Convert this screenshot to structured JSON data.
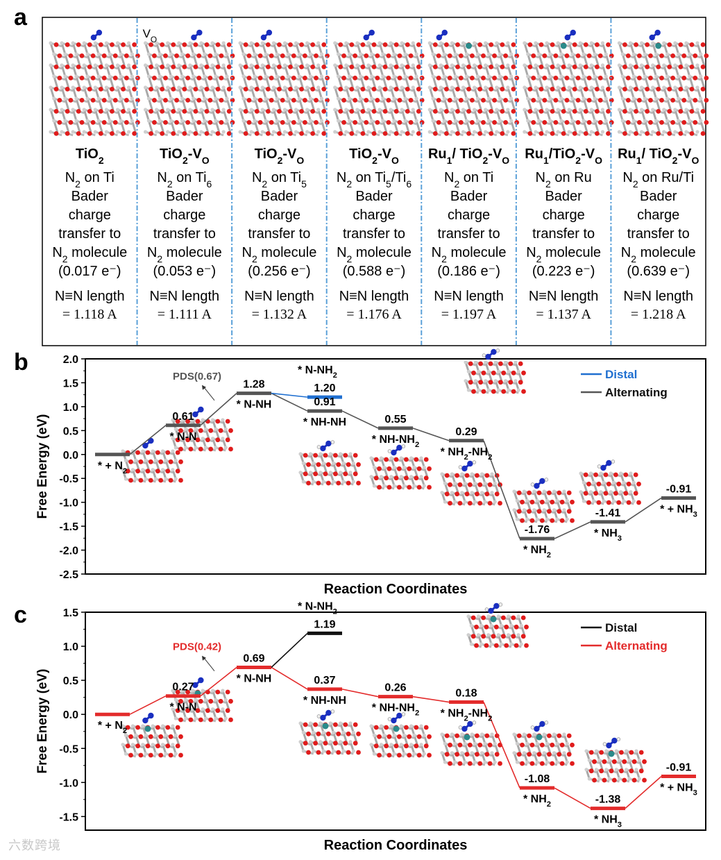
{
  "panel_a": {
    "letter": "a",
    "columns": [
      {
        "title_main": "TiO",
        "title_sub": "2",
        "title_rest": "",
        "site_main": "N",
        "site_sub": "2",
        "site_rest": " on Ti",
        "site_sub2": "",
        "site_tail": "",
        "charge": "(0.017 e⁻)",
        "length": "= 1.118 A"
      },
      {
        "title_main": "TiO",
        "title_sub": "2",
        "title_rest": "-V",
        "title_sub2": "O",
        "site_main": "N",
        "site_sub": "2",
        "site_rest": " on Ti",
        "site_sub2": "6",
        "site_tail": "",
        "charge": "(0.053 e⁻)",
        "length": "= 1.111 A",
        "vo_label": "V",
        "vo_sub": "O"
      },
      {
        "title_main": "TiO",
        "title_sub": "2",
        "title_rest": "-V",
        "title_sub2": "O",
        "site_main": "N",
        "site_sub": "2",
        "site_rest": " on Ti",
        "site_sub2": "5",
        "site_tail": "",
        "charge": "(0.256 e⁻)",
        "length": "= 1.132 A"
      },
      {
        "title_main": "TiO",
        "title_sub": "2",
        "title_rest": "-V",
        "title_sub2": "O",
        "site_main": "N",
        "site_sub": "2",
        "site_rest": " on Ti",
        "site_sub2": "5",
        "site_tail": "/Ti6",
        "charge": "(0.588 e⁻)",
        "length": "= 1.176 A"
      },
      {
        "title_main": "Ru",
        "title_sub": "1",
        "title_rest": "/ TiO",
        "title_sub3": "2",
        "title_rest2": "-V",
        "title_sub2": "O",
        "site_main": "N",
        "site_sub": "2",
        "site_rest": " on Ti",
        "site_sub2": "",
        "site_tail": "",
        "charge": "(0.186 e⁻)",
        "length": "= 1.197 A"
      },
      {
        "title_main": "Ru",
        "title_sub": "1",
        "title_rest": "/TiO",
        "title_sub3": "2",
        "title_rest2": "-V",
        "title_sub2": "O",
        "site_main": "N",
        "site_sub": "2",
        "site_rest": " on Ru",
        "site_sub2": "",
        "site_tail": "",
        "charge": "(0.223 e⁻)",
        "length": "= 1.137 A"
      },
      {
        "title_main": "Ru",
        "title_sub": "1",
        "title_rest": "/ TiO",
        "title_sub3": "2",
        "title_rest2": "-V",
        "title_sub2": "O",
        "site_main": "N",
        "site_sub": "2",
        "site_rest": " on Ru/Ti",
        "site_sub2": "",
        "site_tail": "",
        "charge": "(0.639 e⁻)",
        "length": "= 1.218 A"
      }
    ],
    "bader_lines": [
      "Bader",
      "charge",
      "transfer to"
    ],
    "molecule_main": "N",
    "molecule_sub": "2",
    "molecule_rest": " molecule",
    "nn_label": "N≡N length"
  },
  "chart_data": [
    {
      "type": "line",
      "panel": "b",
      "xlabel": "Reaction Coordinates",
      "ylabel": "Free Energy (eV)",
      "ylim": [
        -2.5,
        2.0
      ],
      "yticks": [
        "2.0",
        "1.5",
        "1.0",
        "0.5",
        "0.0",
        "-0.5",
        "-1.0",
        "-1.5",
        "-2.0",
        "-2.5"
      ],
      "pds_label": "PDS(0.67)",
      "legend": [
        {
          "name": "Distal",
          "color": "#1f6fd0"
        },
        {
          "name": "Alternating",
          "color": "#555555"
        }
      ],
      "alternating_color": "#555555",
      "distal_color": "#1f6fd0",
      "states": [
        {
          "value": 0.0,
          "label": "",
          "name_main": "* + N",
          "name_sub": "2",
          "name_tail": ""
        },
        {
          "value": 0.61,
          "label": "0.61",
          "name_main": "* N-N",
          "name_sub": "",
          "name_tail": ""
        },
        {
          "value": 1.28,
          "label": "1.28",
          "name_main": "* N-NH",
          "name_sub": "",
          "name_tail": ""
        },
        {
          "value": 0.91,
          "label": "0.91",
          "name_main": "* NH-NH",
          "name_sub": "",
          "name_tail": ""
        },
        {
          "value": 0.55,
          "label": "0.55",
          "name_main": "* NH-NH",
          "name_sub": "2",
          "name_tail": ""
        },
        {
          "value": 0.29,
          "label": "0.29",
          "name_main": "* NH",
          "name_sub": "2",
          "name_tail": "-NH2"
        },
        {
          "value": -1.76,
          "label": "-1.76",
          "name_main": "* NH",
          "name_sub": "2",
          "name_tail": ""
        },
        {
          "value": -1.41,
          "label": "-1.41",
          "name_main": "* NH",
          "name_sub": "3",
          "name_tail": ""
        },
        {
          "value": -0.91,
          "label": "-0.91",
          "name_main": "* + NH",
          "name_sub": "3",
          "name_tail": ""
        }
      ],
      "distal_branch": {
        "from_index": 2,
        "value": 1.2,
        "label": "1.20",
        "name_main": "* N-NH",
        "name_sub": "2"
      }
    },
    {
      "type": "line",
      "panel": "c",
      "xlabel": "Reaction Coordinates",
      "ylabel": "Free Energy (eV)",
      "ylim": [
        -1.7,
        1.5
      ],
      "yticks": [
        "1.5",
        "1.0",
        "0.5",
        "0.0",
        "-0.5",
        "-1.0",
        "-1.5"
      ],
      "pds_label": "PDS(0.42)",
      "legend": [
        {
          "name": "Distal",
          "color": "#111111"
        },
        {
          "name": "Alternating",
          "color": "#e32b2b"
        }
      ],
      "alternating_color": "#e32b2b",
      "distal_color": "#111111",
      "states": [
        {
          "value": 0.0,
          "label": "",
          "name_main": "* + N",
          "name_sub": "2",
          "name_tail": ""
        },
        {
          "value": 0.27,
          "label": "0.27",
          "name_main": "* N-N",
          "name_sub": "",
          "name_tail": ""
        },
        {
          "value": 0.69,
          "label": "0.69",
          "name_main": "* N-NH",
          "name_sub": "",
          "name_tail": ""
        },
        {
          "value": 0.37,
          "label": "0.37",
          "name_main": "* NH-NH",
          "name_sub": "",
          "name_tail": ""
        },
        {
          "value": 0.26,
          "label": "0.26",
          "name_main": "* NH-NH",
          "name_sub": "2",
          "name_tail": ""
        },
        {
          "value": 0.18,
          "label": "0.18",
          "name_main": "* NH",
          "name_sub": "2",
          "name_tail": "-NH2"
        },
        {
          "value": -1.08,
          "label": "-1.08",
          "name_main": "* NH",
          "name_sub": "2",
          "name_tail": ""
        },
        {
          "value": -1.38,
          "label": "-1.38",
          "name_main": "* NH",
          "name_sub": "3",
          "name_tail": ""
        },
        {
          "value": -0.91,
          "label": "-0.91",
          "name_main": "* + NH",
          "name_sub": "3",
          "name_tail": ""
        }
      ],
      "distal_branch": {
        "from_index": 2,
        "value": 1.19,
        "label": "1.19",
        "name_main": "* N-NH",
        "name_sub": "2"
      }
    }
  ],
  "watermark": "六数跨境"
}
